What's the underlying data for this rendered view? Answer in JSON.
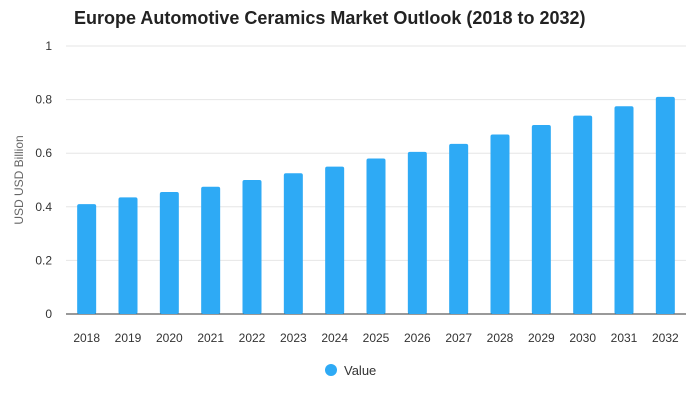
{
  "chart_data": {
    "type": "bar",
    "title": "Europe Automotive Ceramics Market Outlook (2018 to 2032)",
    "xlabel": "",
    "ylabel": "USD USD Billion",
    "categories": [
      "2018",
      "2019",
      "2020",
      "2021",
      "2022",
      "2023",
      "2024",
      "2025",
      "2026",
      "2027",
      "2028",
      "2029",
      "2030",
      "2031",
      "2032"
    ],
    "series": [
      {
        "name": "Value",
        "values": [
          0.41,
          0.435,
          0.455,
          0.475,
          0.5,
          0.525,
          0.55,
          0.58,
          0.605,
          0.635,
          0.67,
          0.705,
          0.74,
          0.775,
          0.81
        ]
      }
    ],
    "ylim": [
      0,
      1
    ],
    "yticks": [
      "0",
      "0.2",
      "0.4",
      "0.6",
      "0.8",
      "1"
    ],
    "grid": true,
    "legend_position": "bottom-center",
    "colors": {
      "bar": "#2eaaf5",
      "title": "#222222",
      "grid": "#e6e6e6"
    }
  }
}
